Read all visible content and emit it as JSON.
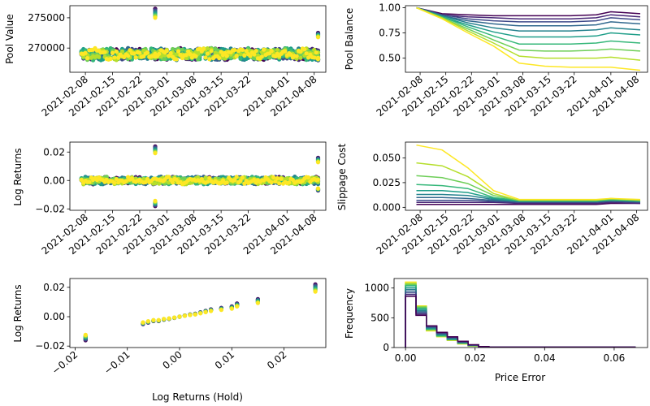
{
  "figure": {
    "background": "#ffffff"
  },
  "palette": [
    "#440154",
    "#482777",
    "#3e4989",
    "#31688e",
    "#26828e",
    "#1f9e89",
    "#35b779",
    "#6ece58",
    "#b5de2b",
    "#fde725"
  ],
  "chart_data": [
    {
      "id": "pool-value",
      "type": "scatter",
      "ylabel": "Pool Value",
      "xlabel": "",
      "x_kind": "date",
      "x_range": [
        "2021-02-04",
        "2021-04-11"
      ],
      "xticks": [
        "2021-02-08",
        "2021-02-15",
        "2021-02-22",
        "2021-03-01",
        "2021-03-08",
        "2021-03-15",
        "2021-03-22",
        "2021-04-01",
        "2021-04-08"
      ],
      "ylim": [
        266000,
        277000
      ],
      "yticks": [
        270000,
        275000
      ],
      "series_count": 10,
      "x_start": "2021-02-07",
      "x_end": "2021-04-09",
      "baseline": 269000,
      "spread": 1500,
      "spikes": [
        {
          "x": "2021-02-26",
          "top": 276500,
          "bottom": 268500
        },
        {
          "x": "2021-04-09",
          "top": 272500,
          "bottom": 268000
        }
      ]
    },
    {
      "id": "pool-balance",
      "type": "line",
      "ylabel": "Pool Balance",
      "xlabel": "",
      "x_kind": "date",
      "x_range": [
        "2021-02-04",
        "2021-04-11"
      ],
      "xticks": [
        "2021-02-08",
        "2021-02-15",
        "2021-02-22",
        "2021-03-01",
        "2021-03-08",
        "2021-03-15",
        "2021-03-22",
        "2021-04-01",
        "2021-04-08"
      ],
      "ylim": [
        0.36,
        1.02
      ],
      "yticks": [
        0.5,
        0.75,
        1.0
      ],
      "yformat": "fixed2",
      "x": [
        "2021-02-07",
        "2021-02-14",
        "2021-02-21",
        "2021-02-28",
        "2021-03-07",
        "2021-03-14",
        "2021-03-21",
        "2021-03-28",
        "2021-04-01",
        "2021-04-09"
      ],
      "series": [
        {
          "values": [
            1.0,
            0.94,
            0.93,
            0.92,
            0.92,
            0.92,
            0.92,
            0.93,
            0.96,
            0.94
          ]
        },
        {
          "values": [
            1.0,
            0.93,
            0.91,
            0.9,
            0.89,
            0.89,
            0.89,
            0.9,
            0.93,
            0.91
          ]
        },
        {
          "values": [
            1.0,
            0.93,
            0.89,
            0.87,
            0.86,
            0.86,
            0.86,
            0.87,
            0.9,
            0.88
          ]
        },
        {
          "values": [
            1.0,
            0.92,
            0.87,
            0.84,
            0.82,
            0.82,
            0.82,
            0.83,
            0.86,
            0.84
          ]
        },
        {
          "values": [
            1.0,
            0.92,
            0.85,
            0.8,
            0.77,
            0.77,
            0.77,
            0.78,
            0.8,
            0.78
          ]
        },
        {
          "values": [
            1.0,
            0.91,
            0.83,
            0.76,
            0.71,
            0.71,
            0.71,
            0.72,
            0.75,
            0.73
          ]
        },
        {
          "values": [
            1.0,
            0.91,
            0.81,
            0.72,
            0.64,
            0.64,
            0.64,
            0.65,
            0.67,
            0.65
          ]
        },
        {
          "values": [
            1.0,
            0.9,
            0.79,
            0.68,
            0.58,
            0.57,
            0.57,
            0.58,
            0.59,
            0.57
          ]
        },
        {
          "values": [
            1.0,
            0.9,
            0.77,
            0.65,
            0.52,
            0.5,
            0.5,
            0.5,
            0.51,
            0.48
          ]
        },
        {
          "values": [
            1.0,
            0.89,
            0.75,
            0.62,
            0.45,
            0.42,
            0.41,
            0.41,
            0.41,
            0.38
          ]
        }
      ]
    },
    {
      "id": "log-returns",
      "type": "scatter",
      "ylabel": "Log Returns",
      "xlabel": "",
      "x_kind": "date",
      "x_range": [
        "2021-02-04",
        "2021-04-11"
      ],
      "xticks": [
        "2021-02-08",
        "2021-02-15",
        "2021-02-22",
        "2021-03-01",
        "2021-03-08",
        "2021-03-15",
        "2021-03-22",
        "2021-04-01",
        "2021-04-08"
      ],
      "ylim": [
        -0.021,
        0.027
      ],
      "yticks": [
        -0.02,
        0.0,
        0.02
      ],
      "yformat": "fixed2",
      "series_count": 10,
      "x_start": "2021-02-07",
      "x_end": "2021-04-09",
      "baseline": 0.0,
      "spread": 0.004,
      "spikes": [
        {
          "x": "2021-02-26",
          "top": 0.024,
          "bottom": -0.018
        },
        {
          "x": "2021-04-09",
          "top": 0.016,
          "bottom": -0.007
        }
      ]
    },
    {
      "id": "slippage-cost",
      "type": "line",
      "ylabel": "Slippage Cost",
      "xlabel": "",
      "x_kind": "date",
      "x_range": [
        "2021-02-04",
        "2021-04-11"
      ],
      "xticks": [
        "2021-02-08",
        "2021-02-15",
        "2021-02-22",
        "2021-03-01",
        "2021-03-08",
        "2021-03-15",
        "2021-03-22",
        "2021-04-01",
        "2021-04-08"
      ],
      "ylim": [
        -0.003,
        0.066
      ],
      "yticks": [
        0.0,
        0.025,
        0.05
      ],
      "yformat": "fixed3",
      "x": [
        "2021-02-07",
        "2021-02-14",
        "2021-02-21",
        "2021-02-28",
        "2021-03-07",
        "2021-03-14",
        "2021-03-21",
        "2021-03-28",
        "2021-04-01",
        "2021-04-09"
      ],
      "series": [
        {
          "values": [
            0.003,
            0.003,
            0.003,
            0.003,
            0.003,
            0.003,
            0.003,
            0.003,
            0.004,
            0.004
          ]
        },
        {
          "values": [
            0.005,
            0.005,
            0.005,
            0.005,
            0.004,
            0.004,
            0.004,
            0.004,
            0.005,
            0.004
          ]
        },
        {
          "values": [
            0.007,
            0.007,
            0.007,
            0.006,
            0.005,
            0.005,
            0.005,
            0.005,
            0.006,
            0.005
          ]
        },
        {
          "values": [
            0.01,
            0.01,
            0.009,
            0.007,
            0.006,
            0.006,
            0.006,
            0.006,
            0.007,
            0.006
          ]
        },
        {
          "values": [
            0.013,
            0.013,
            0.012,
            0.008,
            0.006,
            0.006,
            0.006,
            0.006,
            0.007,
            0.006
          ]
        },
        {
          "values": [
            0.017,
            0.017,
            0.015,
            0.009,
            0.006,
            0.006,
            0.006,
            0.006,
            0.007,
            0.006
          ]
        },
        {
          "values": [
            0.023,
            0.022,
            0.019,
            0.01,
            0.007,
            0.007,
            0.007,
            0.007,
            0.008,
            0.007
          ]
        },
        {
          "values": [
            0.032,
            0.03,
            0.024,
            0.012,
            0.007,
            0.007,
            0.007,
            0.007,
            0.008,
            0.007
          ]
        },
        {
          "values": [
            0.045,
            0.042,
            0.031,
            0.014,
            0.007,
            0.007,
            0.007,
            0.007,
            0.009,
            0.007
          ]
        },
        {
          "values": [
            0.063,
            0.058,
            0.04,
            0.017,
            0.008,
            0.008,
            0.008,
            0.008,
            0.009,
            0.008
          ]
        }
      ]
    },
    {
      "id": "returns-vs-hold",
      "type": "scatter",
      "ylabel": "Log Returns",
      "xlabel": "Log Returns (Hold)",
      "x_kind": "number",
      "xlim": [
        -0.021,
        0.028
      ],
      "xticks": [
        -0.02,
        -0.01,
        0.0,
        0.01,
        0.02
      ],
      "xformat": "fixed2",
      "ylim": [
        -0.021,
        0.026
      ],
      "yticks": [
        -0.02,
        0.0,
        0.02
      ],
      "yformat": "fixed2",
      "series_count": 10,
      "points": [
        [
          -0.018,
          -0.016
        ],
        [
          -0.007,
          -0.005
        ],
        [
          -0.006,
          -0.004
        ],
        [
          -0.005,
          -0.003
        ],
        [
          -0.004,
          -0.003
        ],
        [
          -0.003,
          -0.002
        ],
        [
          -0.002,
          -0.0015
        ],
        [
          -0.001,
          -0.0008
        ],
        [
          0.0,
          0.0
        ],
        [
          0.001,
          0.0008
        ],
        [
          0.002,
          0.0015
        ],
        [
          0.003,
          0.002
        ],
        [
          0.004,
          0.003
        ],
        [
          0.005,
          0.004
        ],
        [
          0.006,
          0.005
        ],
        [
          0.008,
          0.006
        ],
        [
          0.01,
          0.007
        ],
        [
          0.011,
          0.009
        ],
        [
          0.015,
          0.012
        ],
        [
          0.026,
          0.022
        ]
      ]
    },
    {
      "id": "price-error-histogram",
      "type": "histogram",
      "ylabel": "Frequency",
      "xlabel": "Price Error",
      "x_kind": "number",
      "xlim": [
        -0.0033,
        0.0696
      ],
      "xticks": [
        0.0,
        0.02,
        0.04,
        0.06
      ],
      "xformat": "fixed2",
      "ylim": [
        0,
        1160
      ],
      "yticks": [
        0,
        500,
        1000
      ],
      "yformat": "int",
      "bin_edges": [
        0.0,
        0.003,
        0.006,
        0.009,
        0.012,
        0.015,
        0.018,
        0.021,
        0.024,
        0.066
      ],
      "series": [
        {
          "counts": [
            1100,
            700,
            280,
            180,
            120,
            60,
            25,
            8,
            3
          ]
        },
        {
          "counts": [
            1080,
            690,
            290,
            185,
            125,
            65,
            28,
            9,
            3
          ]
        },
        {
          "counts": [
            1060,
            680,
            300,
            190,
            130,
            70,
            30,
            10,
            4
          ]
        },
        {
          "counts": [
            1040,
            660,
            310,
            200,
            135,
            75,
            32,
            11,
            4
          ]
        },
        {
          "counts": [
            1010,
            640,
            320,
            210,
            140,
            80,
            35,
            12,
            5
          ]
        },
        {
          "counts": [
            980,
            620,
            330,
            220,
            150,
            85,
            38,
            13,
            5
          ]
        },
        {
          "counts": [
            950,
            600,
            340,
            230,
            160,
            90,
            40,
            14,
            6
          ]
        },
        {
          "counts": [
            920,
            580,
            350,
            240,
            170,
            95,
            42,
            15,
            6
          ]
        },
        {
          "counts": [
            890,
            560,
            360,
            250,
            175,
            100,
            45,
            16,
            7
          ]
        },
        {
          "counts": [
            860,
            540,
            365,
            255,
            180,
            105,
            48,
            17,
            7
          ]
        }
      ]
    }
  ]
}
